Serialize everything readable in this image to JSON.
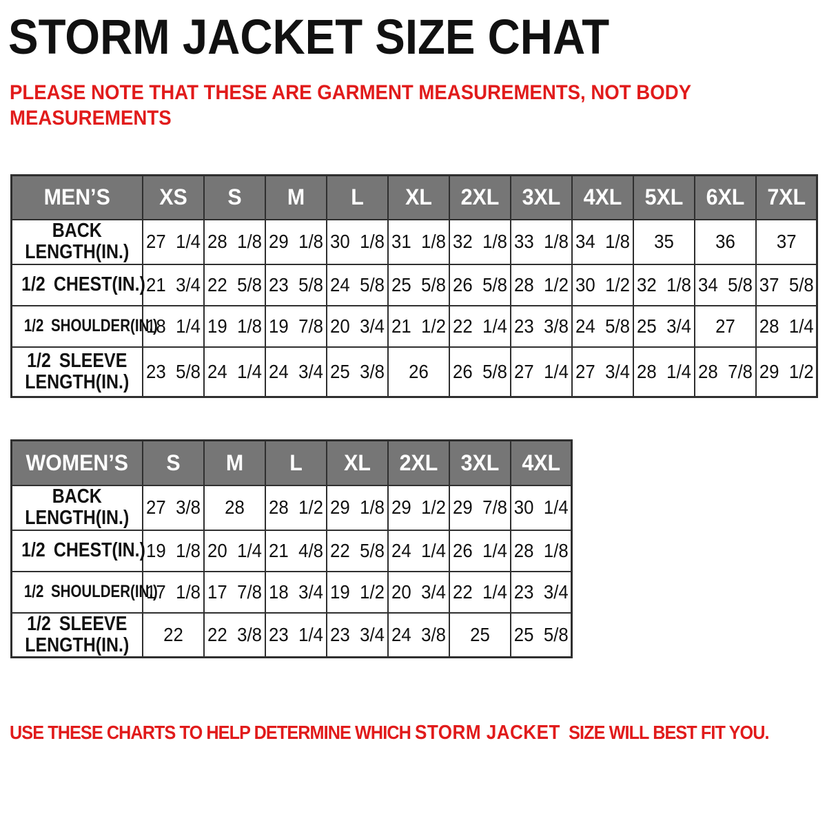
{
  "title": "STORM JACKET SIZE CHAT",
  "note": {
    "line1": "PLEASE NOTE THAT THESE ARE GARMENT MEASUREMENTS, NOT BODY",
    "line2": "MEASUREMENTS"
  },
  "footer": {
    "prefix": "USE THESE CHARTS TO HELP DETERMINE WHICH ",
    "product": "STORM JACKET",
    "suffix": "  SIZE WILL BEST FIT YOU."
  },
  "colors": {
    "accent_red": "#e11b1b",
    "header_gray": "#767676",
    "border_dark": "#2f2f2f",
    "text_black": "#111111"
  },
  "mens_table": {
    "name": "MEN’S",
    "sizes": [
      "XS",
      "S",
      "M",
      "L",
      "XL",
      "2XL",
      "3XL",
      "4XL",
      "5XL",
      "6XL",
      "7XL"
    ],
    "rows": [
      {
        "label": "BACK\nLENGTH(IN.)",
        "values": [
          "27 1/4",
          "28 1/8",
          "29 1/8",
          "30 1/8",
          "31 1/8",
          "32 1/8",
          "33 1/8",
          "34 1/8",
          "35",
          "36",
          "37"
        ]
      },
      {
        "label": "1/2 CHEST(IN.)",
        "values": [
          "21 3/4",
          "22 5/8",
          "23 5/8",
          "24 5/8",
          "25 5/8",
          "26 5/8",
          "28 1/2",
          "30 1/2",
          "32 1/8",
          "34 5/8",
          "37 5/8"
        ]
      },
      {
        "label": "1/2 SHOULDER(IN.)",
        "values": [
          "18 1/4",
          "19 1/8",
          "19 7/8",
          "20 3/4",
          "21 1/2",
          "22 1/4",
          "23 3/8",
          "24 5/8",
          "25 3/4",
          "27",
          "28 1/4"
        ]
      },
      {
        "label": "1/2 SLEEVE\nLENGTH(IN.)",
        "values": [
          "23 5/8",
          "24 1/4",
          "24 3/4",
          "25 3/8",
          "26",
          "26 5/8",
          "27 1/4",
          "27 3/4",
          "28 1/4",
          "28 7/8",
          "29 1/2"
        ]
      }
    ]
  },
  "womens_table": {
    "name": "WOMEN’S",
    "sizes": [
      "S",
      "M",
      "L",
      "XL",
      "2XL",
      "3XL",
      "4XL"
    ],
    "rows": [
      {
        "label": "BACK\nLENGTH(IN.)",
        "values": [
          "27 3/8",
          "28",
          "28 1/2",
          "29 1/8",
          "29 1/2",
          "29 7/8",
          "30 1/4"
        ]
      },
      {
        "label": "1/2 CHEST(IN.)",
        "values": [
          "19 1/8",
          "20 1/4",
          "21 4/8",
          "22 5/8",
          "24 1/4",
          "26 1/4",
          "28 1/8"
        ]
      },
      {
        "label": "1/2 SHOULDER(IN.)",
        "values": [
          "17 1/8",
          "17 7/8",
          "18 3/4",
          "19 1/2",
          "20 3/4",
          "22 1/4",
          "23 3/4"
        ]
      },
      {
        "label": "1/2 SLEEVE\nLENGTH(IN.)",
        "values": [
          "22",
          "22 3/8",
          "23 1/4",
          "23 3/4",
          "24 3/8",
          "25",
          "25 5/8"
        ]
      }
    ]
  }
}
